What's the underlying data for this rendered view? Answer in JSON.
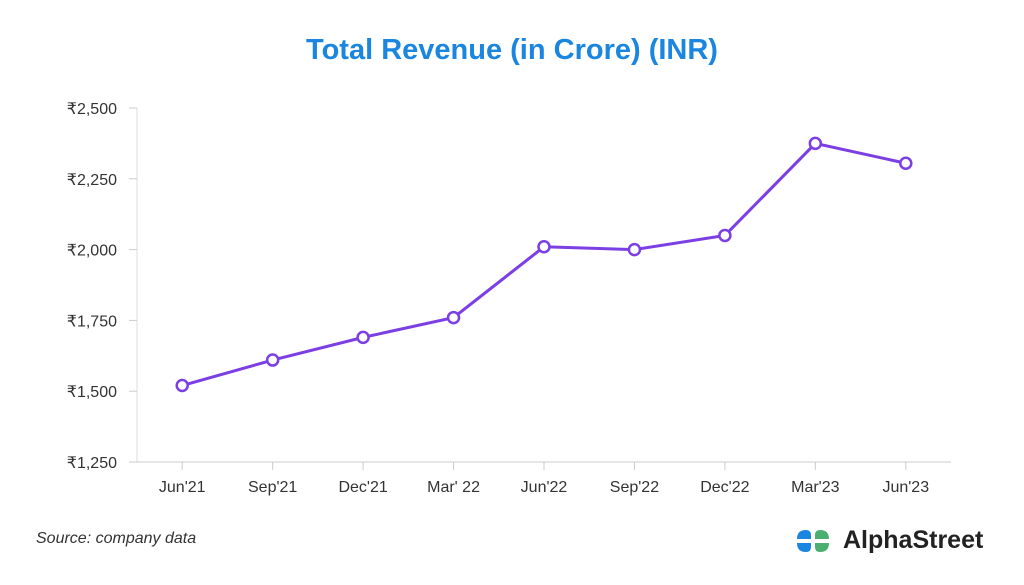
{
  "chart_data": {
    "type": "line",
    "title": "Total Revenue (in Crore) (INR)",
    "xlabel": "",
    "ylabel": "",
    "categories": [
      "Jun'21",
      "Sep'21",
      "Dec'21",
      "Mar' 22",
      "Jun'22",
      "Sep'22",
      "Dec'22",
      "Mar'23",
      "Jun'23"
    ],
    "series": [
      {
        "name": "Total Revenue",
        "values": [
          1520,
          1610,
          1690,
          1760,
          2010,
          2000,
          2050,
          2375,
          2305
        ],
        "color": "#7b3fe4"
      }
    ],
    "ylim": [
      1250,
      2500
    ],
    "yticks": [
      1250,
      1500,
      1750,
      2000,
      2250,
      2500
    ],
    "ytick_labels": [
      "₹1,250",
      "₹1,500",
      "₹1,750",
      "₹2,000",
      "₹2,250",
      "₹2,500"
    ],
    "grid": false
  },
  "source": "Source: company data",
  "brand": {
    "name": "AlphaStreet",
    "colors": {
      "blue": "#1a86e0",
      "green": "#4caf72"
    }
  }
}
